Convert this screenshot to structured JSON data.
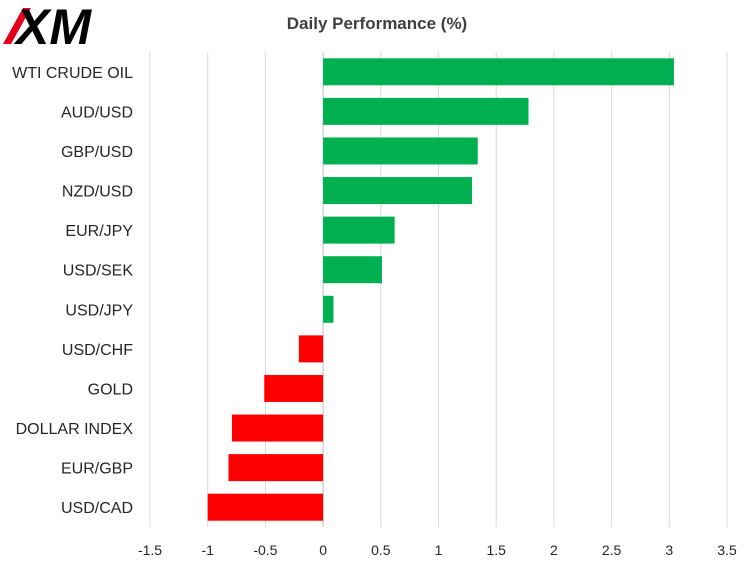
{
  "logo": {
    "text": "XM"
  },
  "chart_data": {
    "type": "bar",
    "orientation": "horizontal",
    "title": "Daily Performance (%)",
    "xlabel": "",
    "ylabel": "",
    "categories": [
      "WTI CRUDE OIL",
      "AUD/USD",
      "GBP/USD",
      "NZD/USD",
      "EUR/JPY",
      "USD/SEK",
      "USD/JPY",
      "USD/CHF",
      "GOLD",
      "DOLLAR INDEX",
      "EUR/GBP",
      "USD/CAD"
    ],
    "values": [
      3.04,
      1.78,
      1.34,
      1.29,
      0.62,
      0.51,
      0.09,
      -0.21,
      -0.51,
      -0.79,
      -0.82,
      -1.0
    ],
    "xlim": [
      -1.5,
      3.5
    ],
    "ticks": [
      -1.5,
      -1,
      -0.5,
      0,
      0.5,
      1,
      1.5,
      2,
      2.5,
      3,
      3.5
    ],
    "tick_labels": [
      "-1.5",
      "-1",
      "-0.5",
      "0",
      "0.5",
      "1",
      "1.5",
      "2",
      "2.5",
      "3",
      "3.5"
    ],
    "grid": "vertical",
    "legend": "none",
    "colors": {
      "positive": "#00b050",
      "negative": "#ff0000",
      "grid": "#d9d9d9"
    }
  }
}
